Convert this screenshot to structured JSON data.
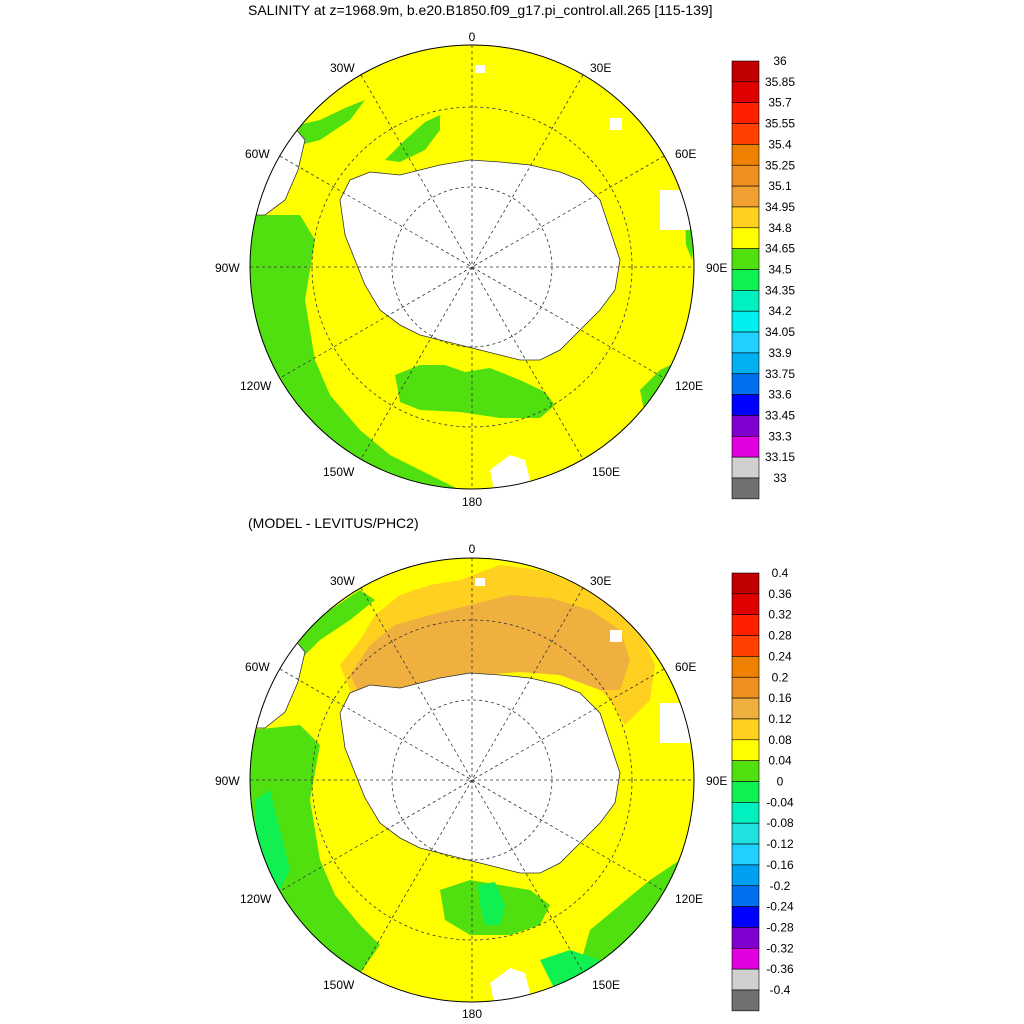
{
  "panels": [
    {
      "title": "SALINITY at z=1968.9m, b.e20.B1850.f09_g17.pi_control.all.265 [115-139]",
      "lon_labels": {
        "0": "0",
        "30E": "30E",
        "60E": "60E",
        "90E": "90E",
        "120E": "120E",
        "150E": "150E",
        "180": "180",
        "150W": "150W",
        "120W": "120W",
        "90W": "90W",
        "60W": "60W",
        "30W": "30W"
      },
      "colorbar": {
        "labels": [
          "36",
          "35.85",
          "35.7",
          "35.55",
          "35.4",
          "35.25",
          "35.1",
          "34.95",
          "34.8",
          "34.65",
          "34.5",
          "34.35",
          "34.2",
          "34.05",
          "33.9",
          "33.75",
          "33.6",
          "33.45",
          "33.3",
          "33.15",
          "33"
        ],
        "colors": [
          "#c00000",
          "#e00000",
          "#ff2000",
          "#ff4000",
          "#f08000",
          "#f09020",
          "#f0a030",
          "#ffd020",
          "#ffff00",
          "#50e010",
          "#10f050",
          "#00f0c0",
          "#00f0f0",
          "#20d0ff",
          "#00b0f0",
          "#0070f0",
          "#0000ff",
          "#8000d0",
          "#e000e0",
          "#d0d0d0",
          "#707070"
        ]
      }
    },
    {
      "title": "(MODEL - LEVITUS/PHC2)",
      "lon_labels": {
        "0": "0",
        "30E": "30E",
        "60E": "60E",
        "90E": "90E",
        "120E": "120E",
        "150E": "150E",
        "180": "180",
        "150W": "150W",
        "120W": "120W",
        "90W": "90W",
        "60W": "60W",
        "30W": "30W"
      },
      "colorbar": {
        "labels": [
          "0.4",
          "0.36",
          "0.32",
          "0.28",
          "0.24",
          "0.2",
          "0.16",
          "0.12",
          "0.08",
          "0.04",
          "0",
          "-0.04",
          "-0.08",
          "-0.12",
          "-0.16",
          "-0.2",
          "-0.24",
          "-0.28",
          "-0.32",
          "-0.36",
          "-0.4"
        ],
        "colors": [
          "#c00000",
          "#e00000",
          "#ff2000",
          "#ff4000",
          "#f08000",
          "#f09020",
          "#f0b040",
          "#ffd020",
          "#ffff00",
          "#50e010",
          "#10f050",
          "#00f0c0",
          "#20e0e0",
          "#20d0ff",
          "#00a0f0",
          "#0070f0",
          "#0000ff",
          "#8000d0",
          "#e000e0",
          "#d0d0d0",
          "#707070"
        ]
      }
    }
  ],
  "colors": {
    "land": "#ffffff",
    "coast": "#333333",
    "grid": "#333333"
  }
}
